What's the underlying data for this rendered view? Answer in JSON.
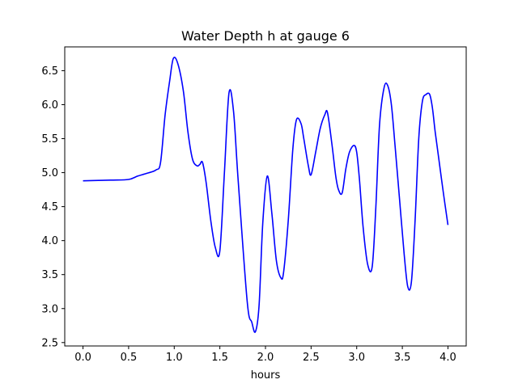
{
  "chart_data": {
    "type": "line",
    "title": "Water Depth h at gauge 6",
    "xlabel": "hours",
    "ylabel": "",
    "xlim": [
      -0.2,
      4.2
    ],
    "ylim": [
      2.45,
      6.85
    ],
    "xticks": [
      "0.0",
      "0.5",
      "1.0",
      "1.5",
      "2.0",
      "2.5",
      "3.0",
      "3.5",
      "4.0"
    ],
    "yticks": [
      "2.5",
      "3.0",
      "3.5",
      "4.0",
      "4.5",
      "5.0",
      "5.5",
      "6.0",
      "6.5"
    ],
    "grid": false,
    "legend": "none",
    "series": [
      {
        "color": "#0000ff",
        "x": [
          0.0,
          0.3,
          0.5,
          0.6,
          0.7,
          0.8,
          0.85,
          0.9,
          0.95,
          0.99,
          1.04,
          1.1,
          1.15,
          1.2,
          1.25,
          1.28,
          1.31,
          1.35,
          1.4,
          1.45,
          1.5,
          1.55,
          1.6,
          1.65,
          1.7,
          1.8,
          1.85,
          1.89,
          1.93,
          1.97,
          2.02,
          2.07,
          2.12,
          2.17,
          2.2,
          2.25,
          2.3,
          2.34,
          2.39,
          2.42,
          2.47,
          2.5,
          2.55,
          2.6,
          2.65,
          2.68,
          2.73,
          2.77,
          2.8,
          2.84,
          2.88,
          2.92,
          2.97,
          3.0,
          3.03,
          3.07,
          3.12,
          3.17,
          3.21,
          3.25,
          3.3,
          3.34,
          3.38,
          3.42,
          3.47,
          3.52,
          3.56,
          3.6,
          3.64,
          3.68,
          3.72,
          3.76,
          3.8,
          3.83,
          3.86,
          3.9,
          3.95,
          4.0
        ],
        "y": [
          4.88,
          4.89,
          4.9,
          4.95,
          4.99,
          5.04,
          5.15,
          5.85,
          6.35,
          6.68,
          6.6,
          6.2,
          5.6,
          5.2,
          5.1,
          5.12,
          5.15,
          4.85,
          4.3,
          3.9,
          3.85,
          5.0,
          6.17,
          5.9,
          4.9,
          3.1,
          2.8,
          2.66,
          3.05,
          4.25,
          4.95,
          4.4,
          3.7,
          3.45,
          3.55,
          4.3,
          5.35,
          5.78,
          5.72,
          5.5,
          5.1,
          4.97,
          5.3,
          5.65,
          5.85,
          5.88,
          5.4,
          4.95,
          4.75,
          4.7,
          5.05,
          5.3,
          5.4,
          5.3,
          4.9,
          4.2,
          3.65,
          3.62,
          4.5,
          5.7,
          6.25,
          6.28,
          6.0,
          5.4,
          4.6,
          3.8,
          3.32,
          3.4,
          4.3,
          5.5,
          6.05,
          6.15,
          6.15,
          5.95,
          5.6,
          5.2,
          4.7,
          4.23
        ]
      }
    ]
  }
}
